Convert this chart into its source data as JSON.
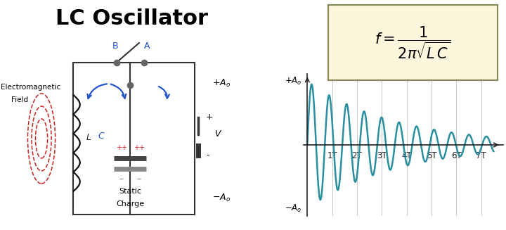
{
  "title": "LC Oscillator",
  "title_fontsize": 22,
  "title_fontweight": "bold",
  "bg_color": "#ffffff",
  "circuit_color": "#333333",
  "inductor_color": "#111111",
  "em_field_color": "#cc2222",
  "arrow_color": "#2255cc",
  "wave_color": "#2a8fa0",
  "formula_bg": "#fdf5dc",
  "formula_border": "#888855",
  "grid_color": "#c8c8c8",
  "axis_color": "#222222",
  "tick_label_color": "#222222",
  "decay_rate": 0.28,
  "wave_freq": 1.42,
  "x_ticks": [
    1,
    2,
    3,
    4,
    5,
    6,
    7
  ],
  "x_tick_labels": [
    "1T",
    "2T",
    "3T",
    "4T",
    "5T",
    "6T",
    "7T"
  ]
}
